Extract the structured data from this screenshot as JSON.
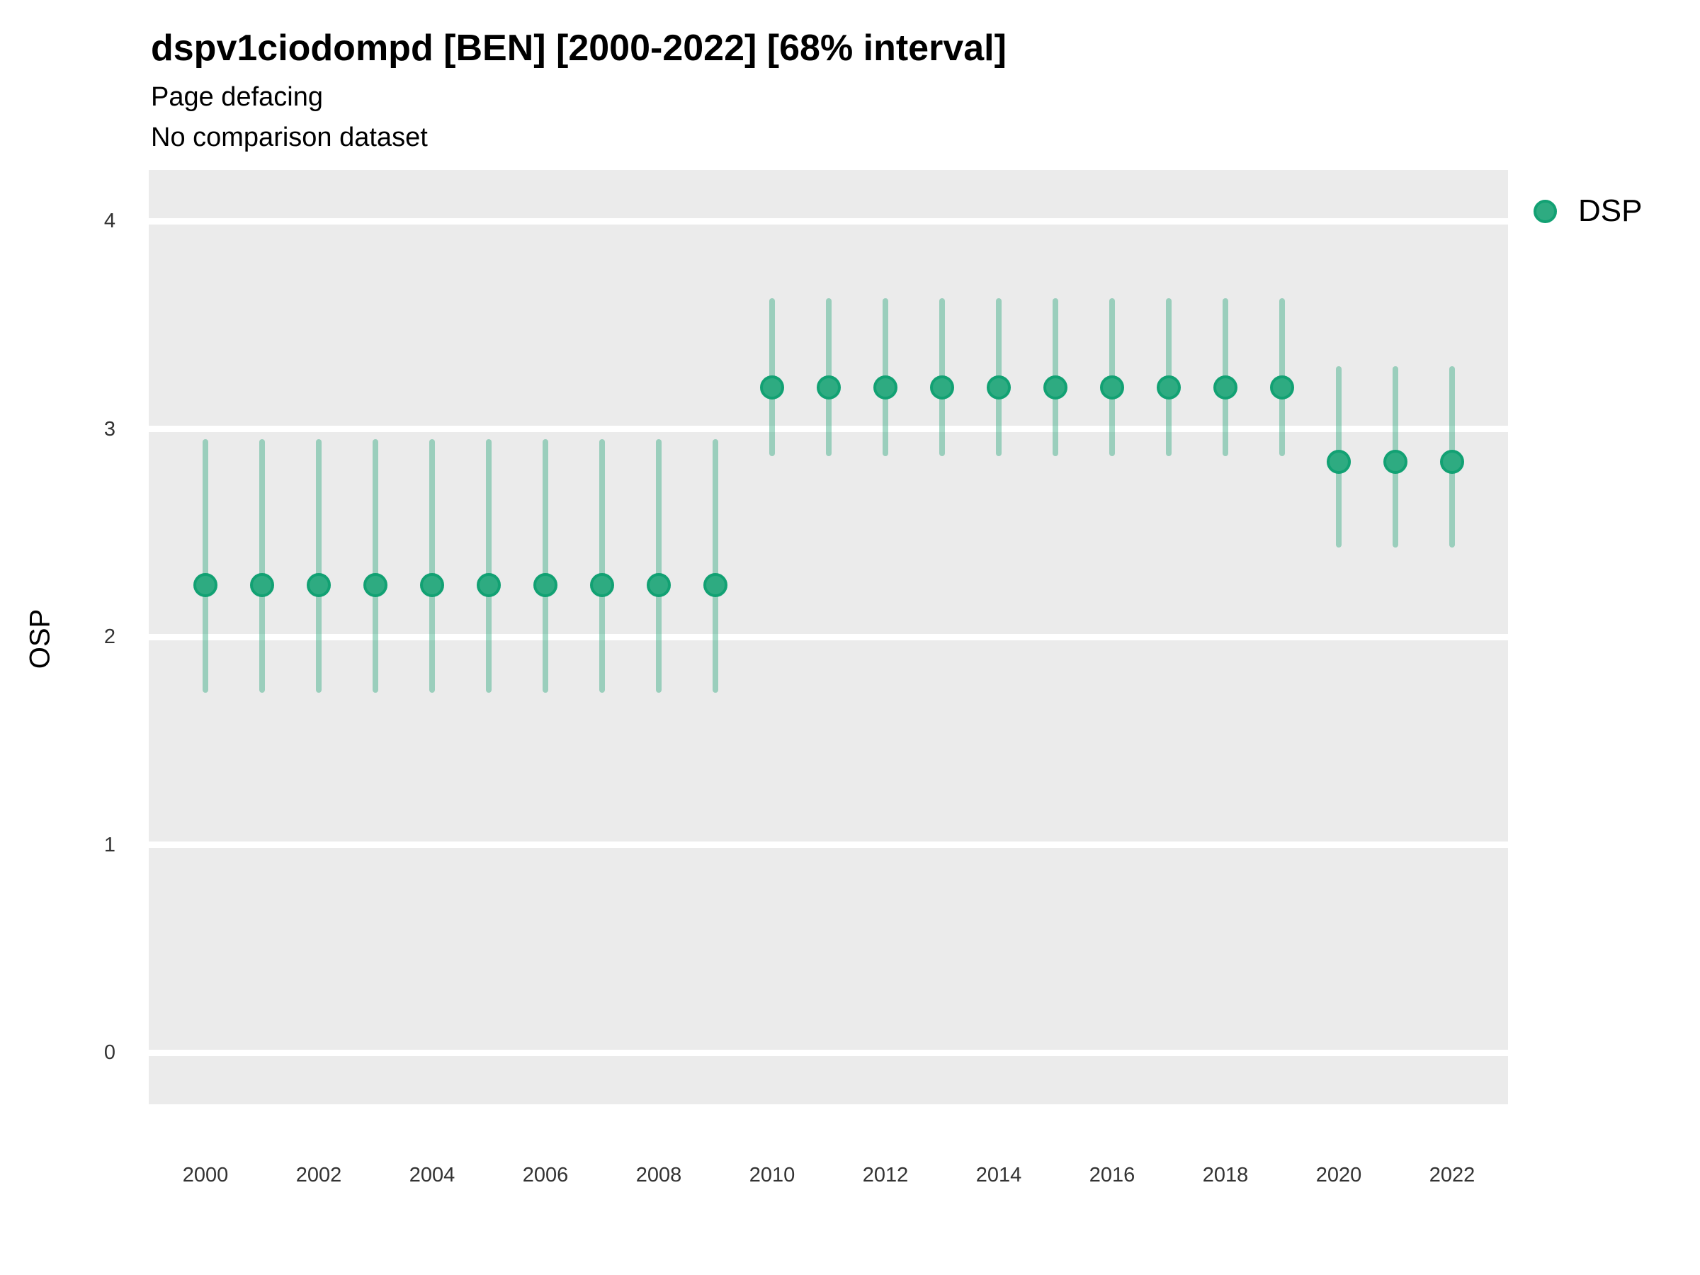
{
  "title": "dspv1ciodompd [BEN] [2000-2022] [68% interval]",
  "subtitle1": "Page defacing",
  "subtitle2": "No comparison dataset",
  "ylabel": "OSP",
  "legend": {
    "label": "DSP"
  },
  "colors": {
    "point_fill": "#2EAB81",
    "point_border": "#12A173",
    "interval_bar": "rgba(43, 168, 124, 0.42)",
    "panel_background": "#EBEBEB",
    "gridline": "#FFFFFF",
    "tick_text": "#333333",
    "title_text": "#000000"
  },
  "chart_data": {
    "type": "scatter",
    "title": "dspv1ciodompd [BEN] [2000-2022] [68% interval]",
    "subtitle": [
      "Page defacing",
      "No comparison dataset"
    ],
    "xlabel": "",
    "ylabel": "OSP",
    "interval_label": "68% interval",
    "legend_position": "right",
    "grid": "major-horizontal",
    "panel_bg": "#EBEBEB",
    "ylim": [
      -0.25,
      4.25
    ],
    "yticks": [
      0,
      1,
      2,
      3,
      4
    ],
    "xticks": [
      2000,
      2002,
      2004,
      2006,
      2008,
      2010,
      2012,
      2014,
      2016,
      2018,
      2020,
      2022
    ],
    "x": [
      2000,
      2001,
      2002,
      2003,
      2004,
      2005,
      2006,
      2007,
      2008,
      2009,
      2010,
      2011,
      2012,
      2013,
      2014,
      2015,
      2016,
      2017,
      2018,
      2019,
      2020,
      2021,
      2022
    ],
    "series": [
      {
        "name": "DSP",
        "values": [
          2.25,
          2.25,
          2.25,
          2.25,
          2.25,
          2.25,
          2.25,
          2.25,
          2.25,
          2.25,
          3.2,
          3.2,
          3.2,
          3.2,
          3.2,
          3.2,
          3.2,
          3.2,
          3.2,
          3.2,
          2.84,
          2.84,
          2.84
        ],
        "lower": [
          1.73,
          1.73,
          1.73,
          1.73,
          1.73,
          1.73,
          1.73,
          1.73,
          1.73,
          1.73,
          2.87,
          2.87,
          2.87,
          2.87,
          2.87,
          2.87,
          2.87,
          2.87,
          2.87,
          2.87,
          2.43,
          2.43,
          2.43
        ],
        "upper": [
          2.95,
          2.95,
          2.95,
          2.95,
          2.95,
          2.95,
          2.95,
          2.95,
          2.95,
          2.95,
          3.63,
          3.63,
          3.63,
          3.63,
          3.63,
          3.63,
          3.63,
          3.63,
          3.63,
          3.63,
          3.3,
          3.3,
          3.3
        ]
      }
    ]
  }
}
